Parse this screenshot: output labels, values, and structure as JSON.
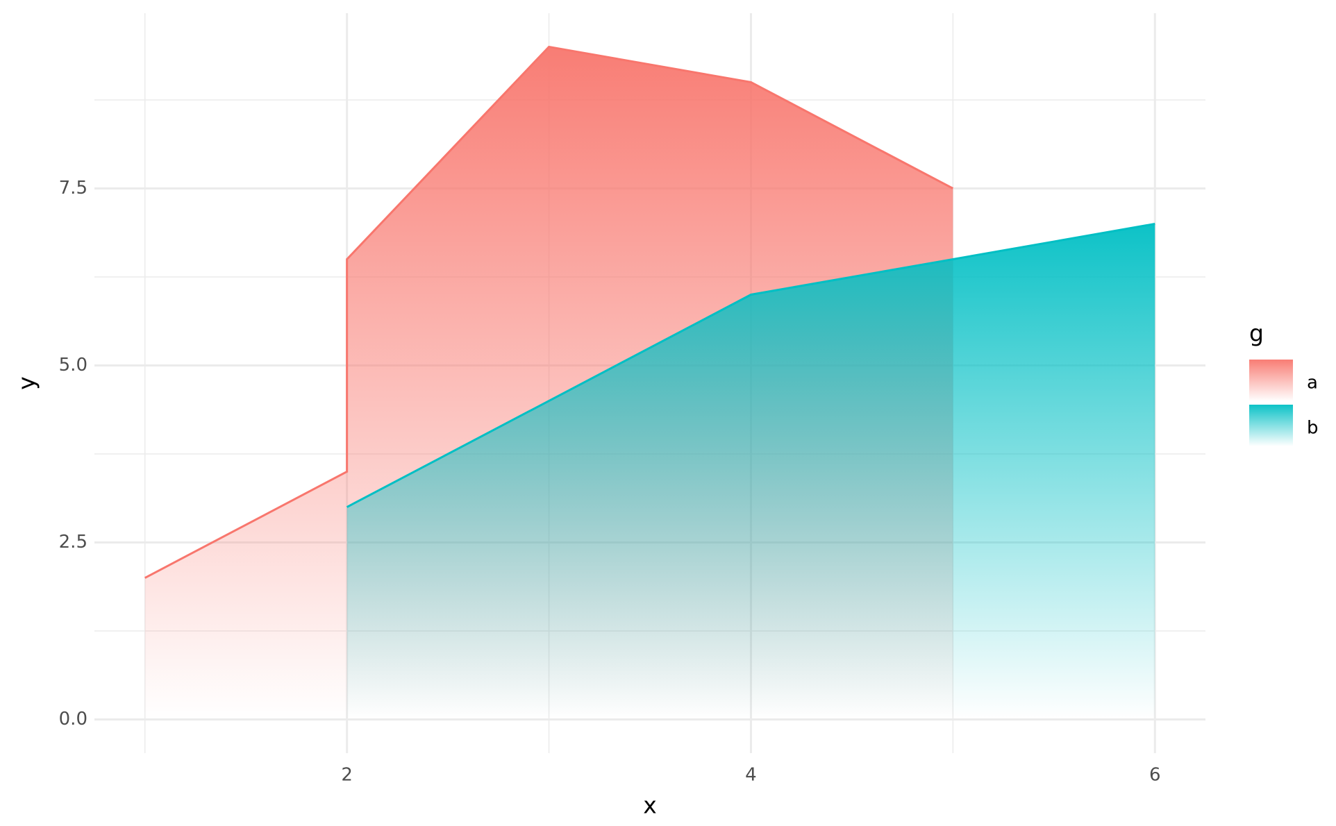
{
  "chart_data": {
    "type": "area",
    "x_label": "x",
    "y_label": "y",
    "legend_title": "g",
    "series": [
      {
        "name": "a",
        "color": "#f8766d",
        "x": [
          1,
          2,
          2,
          3,
          4,
          5
        ],
        "values": [
          2,
          3.5,
          6.5,
          9.5,
          9,
          7.5
        ]
      },
      {
        "name": "b",
        "color": "#00bfc4",
        "x": [
          2,
          4,
          6
        ],
        "values": [
          3,
          6,
          7
        ]
      }
    ],
    "xlim": [
      0.75,
      6.25
    ],
    "ylim": [
      -0.475,
      9.975
    ],
    "xticks": [
      2,
      4,
      6
    ],
    "yticks": [
      {
        "value": 0,
        "label": "0.0"
      },
      {
        "value": 2.5,
        "label": "2.5"
      },
      {
        "value": 5,
        "label": "5.0"
      },
      {
        "value": 7.5,
        "label": "7.5"
      }
    ],
    "grid": true
  }
}
